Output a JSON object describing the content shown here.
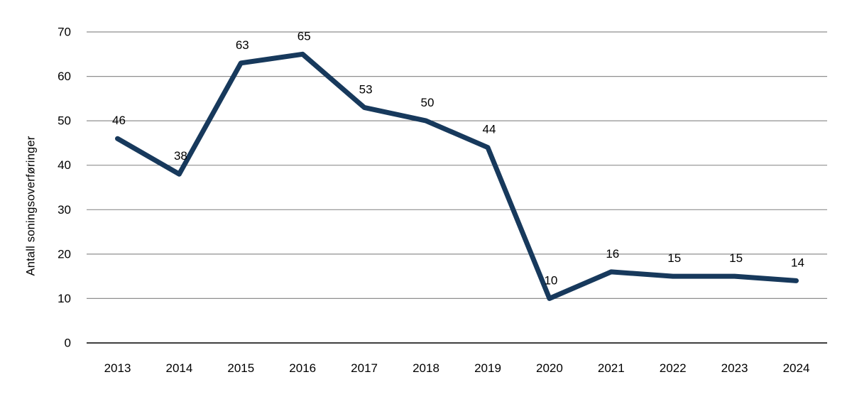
{
  "chart_data": {
    "type": "line",
    "categories": [
      "2013",
      "2014",
      "2015",
      "2016",
      "2017",
      "2018",
      "2019",
      "2020",
      "2021",
      "2022",
      "2023",
      "2024"
    ],
    "values": [
      46,
      38,
      63,
      65,
      53,
      50,
      44,
      10,
      16,
      15,
      15,
      14
    ],
    "ylabel": "Antall soningsoverføringer",
    "ylim": [
      0,
      70
    ],
    "yticks": [
      0,
      10,
      20,
      30,
      40,
      50,
      60,
      70
    ],
    "grid": true,
    "data_labels": true,
    "legend": "none",
    "colors": {
      "line": "#17395C",
      "gridline": "#8F8F8F",
      "axis_line": "#3F3F3F",
      "text": "#000000",
      "background": "#FFFFFF"
    }
  }
}
